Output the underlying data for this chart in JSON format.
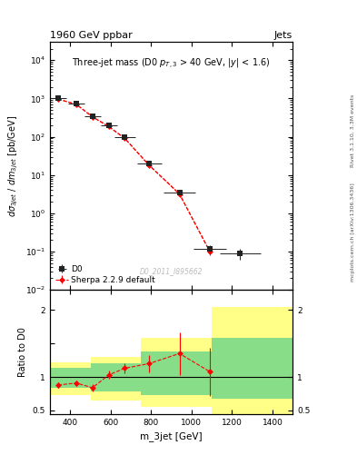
{
  "title_top": "1960 GeV ppbar",
  "title_right": "Jets",
  "plot_title": "Three-jet mass (D0 p_{T,3} > 40 GeV, |y| < 1.6)",
  "ylabel_main": "dσ_3jet / dm_3jet [pb/GeV]",
  "ylabel_ratio": "Ratio to D0",
  "xlabel": "m_3jet [GeV]",
  "watermark": "D0_2011_I895662",
  "right_label": "Rivet 3.1.10, 3.3M events",
  "right_label2": "mcplots.cern.ch [arXiv:1306.3436]",
  "d0_x": [
    340,
    430,
    510,
    590,
    670,
    790,
    940,
    1090,
    1240
  ],
  "d0_y": [
    1000,
    730,
    350,
    200,
    100,
    20,
    3.5,
    0.12,
    0.09
  ],
  "d0_xerr_lo": [
    40,
    40,
    40,
    40,
    50,
    60,
    80,
    80,
    100
  ],
  "d0_xerr_hi": [
    40,
    40,
    40,
    40,
    50,
    60,
    80,
    80,
    100
  ],
  "d0_yerr_lo": [
    50,
    40,
    20,
    12,
    7,
    2,
    0.4,
    0.03,
    0.03
  ],
  "d0_yerr_hi": [
    50,
    40,
    20,
    12,
    7,
    2,
    0.4,
    0.03,
    0.03
  ],
  "sherpa_x": [
    340,
    430,
    510,
    590,
    670,
    790,
    940,
    1090
  ],
  "sherpa_y": [
    960,
    700,
    330,
    185,
    90,
    18,
    3.2,
    0.1
  ],
  "sherpa_yerr_lo": [
    30,
    25,
    15,
    10,
    5,
    1.2,
    0.25,
    0.02
  ],
  "sherpa_yerr_hi": [
    30,
    25,
    15,
    10,
    5,
    1.2,
    0.25,
    0.02
  ],
  "ratio_x": [
    340,
    430,
    510,
    590,
    670,
    790,
    940,
    1090
  ],
  "ratio_y": [
    0.88,
    0.91,
    0.84,
    1.03,
    1.13,
    1.2,
    1.35,
    1.08
  ],
  "ratio_yerr_lo": [
    0.04,
    0.04,
    0.05,
    0.06,
    0.08,
    0.13,
    0.32,
    0.36
  ],
  "ratio_yerr_hi": [
    0.04,
    0.04,
    0.05,
    0.06,
    0.08,
    0.13,
    0.32,
    0.36
  ],
  "band_yellow_edges": [
    300,
    500,
    750,
    1100,
    1500
  ],
  "band_yellow_lo": [
    0.73,
    0.65,
    0.55,
    0.45
  ],
  "band_yellow_hi": [
    1.22,
    1.3,
    1.58,
    2.05
  ],
  "band_green_edges": [
    300,
    500,
    750,
    1100,
    1500
  ],
  "band_green_lo": [
    0.84,
    0.79,
    0.73,
    0.68
  ],
  "band_green_hi": [
    1.13,
    1.2,
    1.38,
    1.58
  ],
  "xlim": [
    300,
    1500
  ],
  "ylim_main_lo": 0.01,
  "ylim_main_hi": 30000,
  "ylim_ratio_lo": 0.45,
  "ylim_ratio_hi": 2.3,
  "d0_color": "#222222",
  "sherpa_color": "red",
  "band_yellow_color": "#ffff88",
  "band_green_color": "#88dd88",
  "fig_width": 3.93,
  "fig_height": 5.12,
  "dpi": 100
}
